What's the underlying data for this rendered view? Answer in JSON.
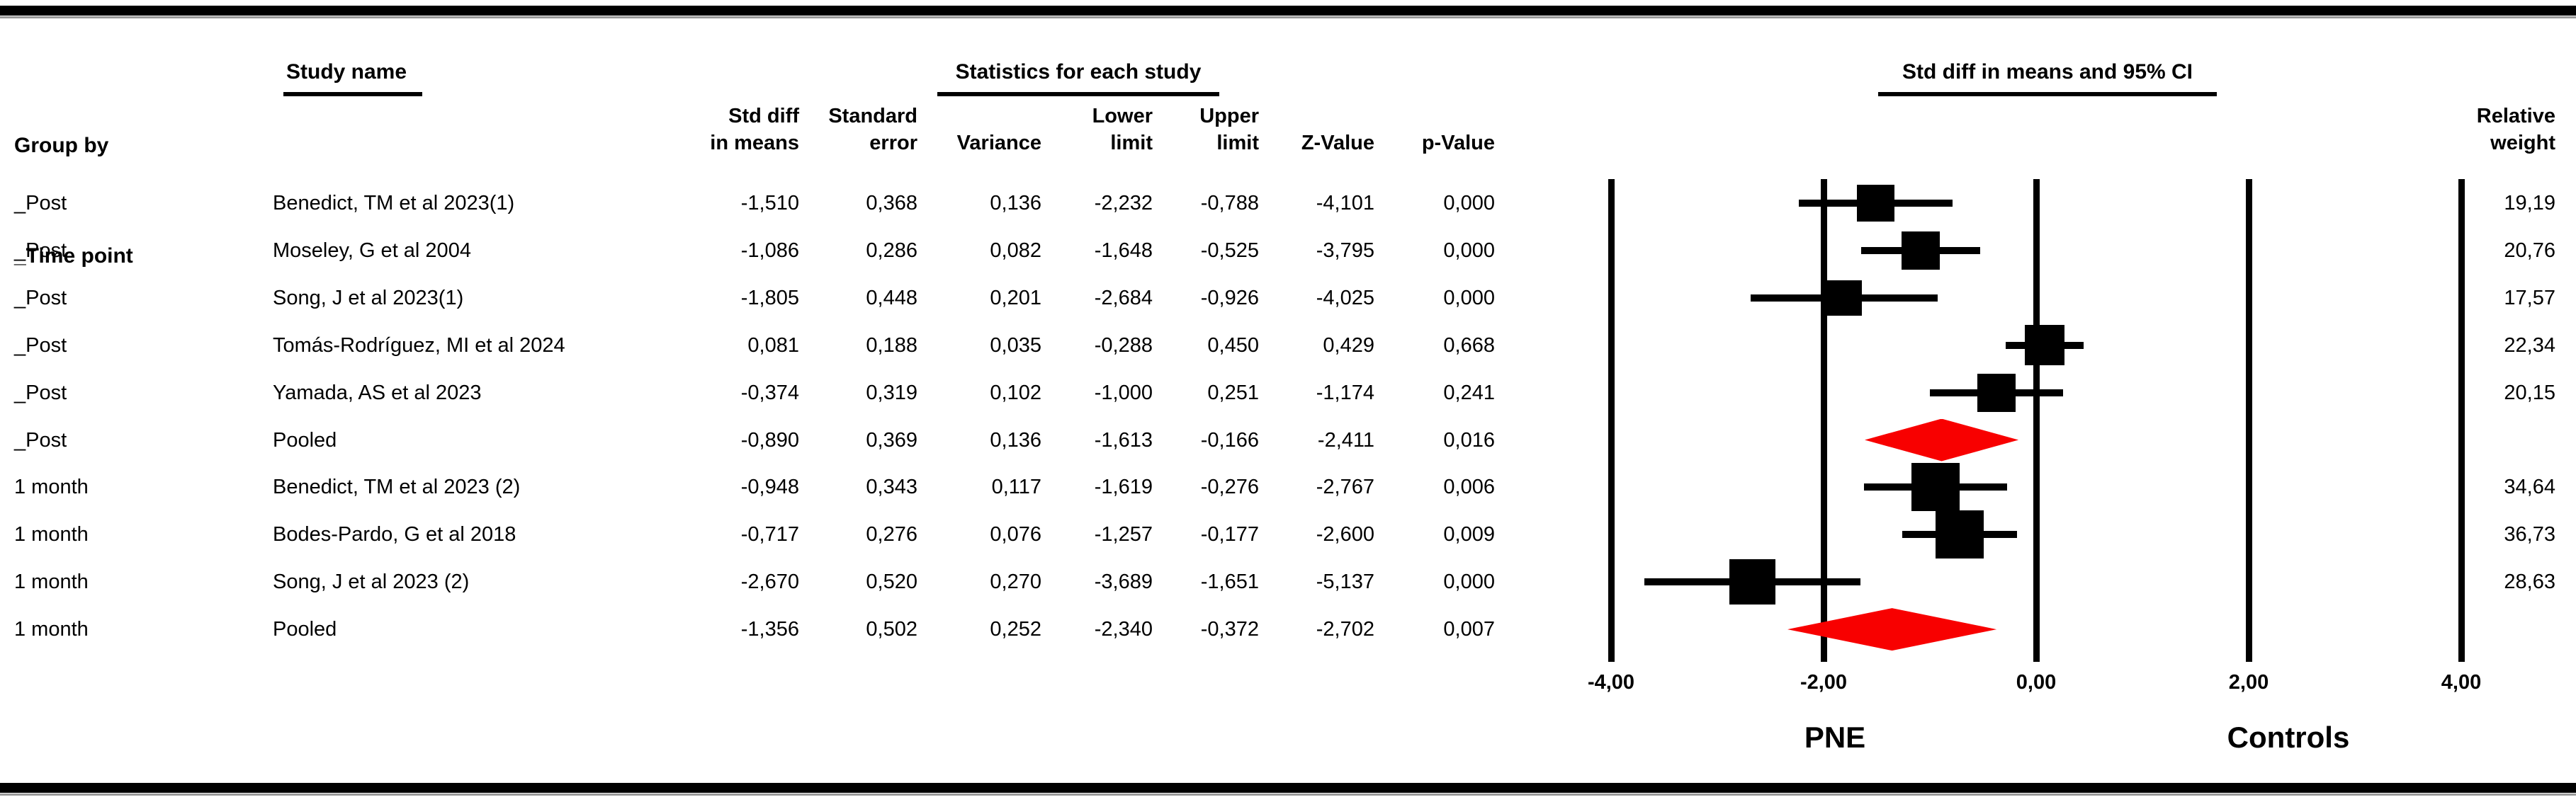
{
  "header": {
    "group_by_line1": "Group by",
    "group_by_line2": "_Time point",
    "study_name_label": "Study name",
    "stats_title": "Statistics for each study",
    "plot_title": "Std diff in means and 95% CI",
    "columns": [
      {
        "line1": "Std diff",
        "line2": "in means"
      },
      {
        "line1": "Standard",
        "line2": "error"
      },
      {
        "line1": "",
        "line2": "Variance"
      },
      {
        "line1": "Lower",
        "line2": "limit"
      },
      {
        "line1": "Upper",
        "line2": "limit"
      },
      {
        "line1": "",
        "line2": "Z-Value"
      },
      {
        "line1": "",
        "line2": "p-Value"
      }
    ],
    "relative_weight_line1": "Relative",
    "relative_weight_line2": "weight"
  },
  "chart_data": {
    "type": "forest",
    "effect_measure": "Std diff in means",
    "xlim": [
      -5,
      5
    ],
    "axis_ticks": {
      "values": [
        -4,
        -2,
        0,
        2,
        4
      ],
      "labels": [
        "-4,00",
        "-2,00",
        "0,00",
        "2,00",
        "4,00"
      ]
    },
    "left_side_label": "PNE",
    "right_side_label": "Controls",
    "decimal_separator": ",",
    "marker_color": "#000000",
    "pooled_diamond_color": "#f80000",
    "rows": [
      {
        "group": "_Post",
        "study": "Benedict, TM et al 2023(1)",
        "std_diff": -1.51,
        "se": 0.368,
        "variance": 0.136,
        "lower": -2.232,
        "upper": -0.788,
        "z": -4.101,
        "p": 0.0,
        "weight": 19.19,
        "pooled": false
      },
      {
        "group": "_Post",
        "study": "Moseley, G et al 2004",
        "std_diff": -1.086,
        "se": 0.286,
        "variance": 0.082,
        "lower": -1.648,
        "upper": -0.525,
        "z": -3.795,
        "p": 0.0,
        "weight": 20.76,
        "pooled": false
      },
      {
        "group": "_Post",
        "study": "Song, J et al 2023(1)",
        "std_diff": -1.805,
        "se": 0.448,
        "variance": 0.201,
        "lower": -2.684,
        "upper": -0.926,
        "z": -4.025,
        "p": 0.0,
        "weight": 17.57,
        "pooled": false
      },
      {
        "group": "_Post",
        "study": "Tomás-Rodríguez, MI et al 2024",
        "std_diff": 0.081,
        "se": 0.188,
        "variance": 0.035,
        "lower": -0.288,
        "upper": 0.45,
        "z": 0.429,
        "p": 0.668,
        "weight": 22.34,
        "pooled": false
      },
      {
        "group": "_Post",
        "study": "Yamada, AS et al 2023",
        "std_diff": -0.374,
        "se": 0.319,
        "variance": 0.102,
        "lower": -1.0,
        "upper": 0.251,
        "z": -1.174,
        "p": 0.241,
        "weight": 20.15,
        "pooled": false
      },
      {
        "group": "_Post",
        "study": "Pooled",
        "std_diff": -0.89,
        "se": 0.369,
        "variance": 0.136,
        "lower": -1.613,
        "upper": -0.166,
        "z": -2.411,
        "p": 0.016,
        "weight": null,
        "pooled": true
      },
      {
        "group": "1 month",
        "study": "Benedict, TM et al 2023 (2)",
        "std_diff": -0.948,
        "se": 0.343,
        "variance": 0.117,
        "lower": -1.619,
        "upper": -0.276,
        "z": -2.767,
        "p": 0.006,
        "weight": 34.64,
        "pooled": false
      },
      {
        "group": "1 month",
        "study": "Bodes-Pardo, G et al 2018",
        "std_diff": -0.717,
        "se": 0.276,
        "variance": 0.076,
        "lower": -1.257,
        "upper": -0.177,
        "z": -2.6,
        "p": 0.009,
        "weight": 36.73,
        "pooled": false
      },
      {
        "group": "1 month",
        "study": "Song, J et al 2023 (2)",
        "std_diff": -2.67,
        "se": 0.52,
        "variance": 0.27,
        "lower": -3.689,
        "upper": -1.651,
        "z": -5.137,
        "p": 0.0,
        "weight": 28.63,
        "pooled": false
      },
      {
        "group": "1 month",
        "study": "Pooled",
        "std_diff": -1.356,
        "se": 0.502,
        "variance": 0.252,
        "lower": -2.34,
        "upper": -0.372,
        "z": -2.702,
        "p": 0.007,
        "weight": null,
        "pooled": true
      }
    ]
  }
}
